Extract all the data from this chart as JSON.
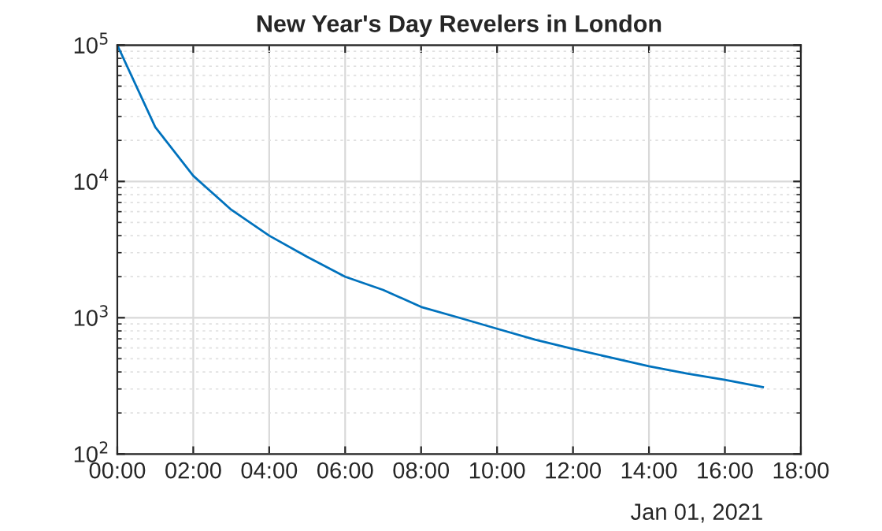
{
  "chart_data": {
    "type": "line",
    "title": "New Year's Day Revelers in London",
    "x": [
      0,
      1,
      2,
      3,
      4,
      5,
      6,
      7,
      8,
      9,
      10,
      11,
      12,
      13,
      14,
      15,
      16,
      17
    ],
    "series": [
      {
        "color": "#0072bd",
        "values": [
          100000,
          25000,
          11000,
          6200,
          4000,
          2800,
          2000,
          1600,
          1200,
          1000,
          830,
          690,
          590,
          510,
          440,
          390,
          350,
          310
        ]
      }
    ],
    "log": "y",
    "xlim": [
      0,
      18
    ],
    "ylim": [
      100,
      100000
    ],
    "xticks": [
      {
        "value": 0,
        "label": "00:00"
      },
      {
        "value": 2,
        "label": "02:00"
      },
      {
        "value": 4,
        "label": "04:00"
      },
      {
        "value": 6,
        "label": "06:00"
      },
      {
        "value": 8,
        "label": "08:00"
      },
      {
        "value": 10,
        "label": "10:00"
      },
      {
        "value": 12,
        "label": "12:00"
      },
      {
        "value": 14,
        "label": "14:00"
      },
      {
        "value": 16,
        "label": "16:00"
      },
      {
        "value": 18,
        "label": "18:00"
      }
    ],
    "yticks": [
      {
        "value": 100,
        "label": "10$^{2}$"
      },
      {
        "value": 1000,
        "label": "10$^{3}$"
      },
      {
        "value": 10000,
        "label": "10$^{4}$"
      },
      {
        "value": 100000,
        "label": "10$^{5}$"
      }
    ],
    "grid": true,
    "line_style": "solid",
    "annotations": [
      "Jan 01, 2021"
    ]
  }
}
